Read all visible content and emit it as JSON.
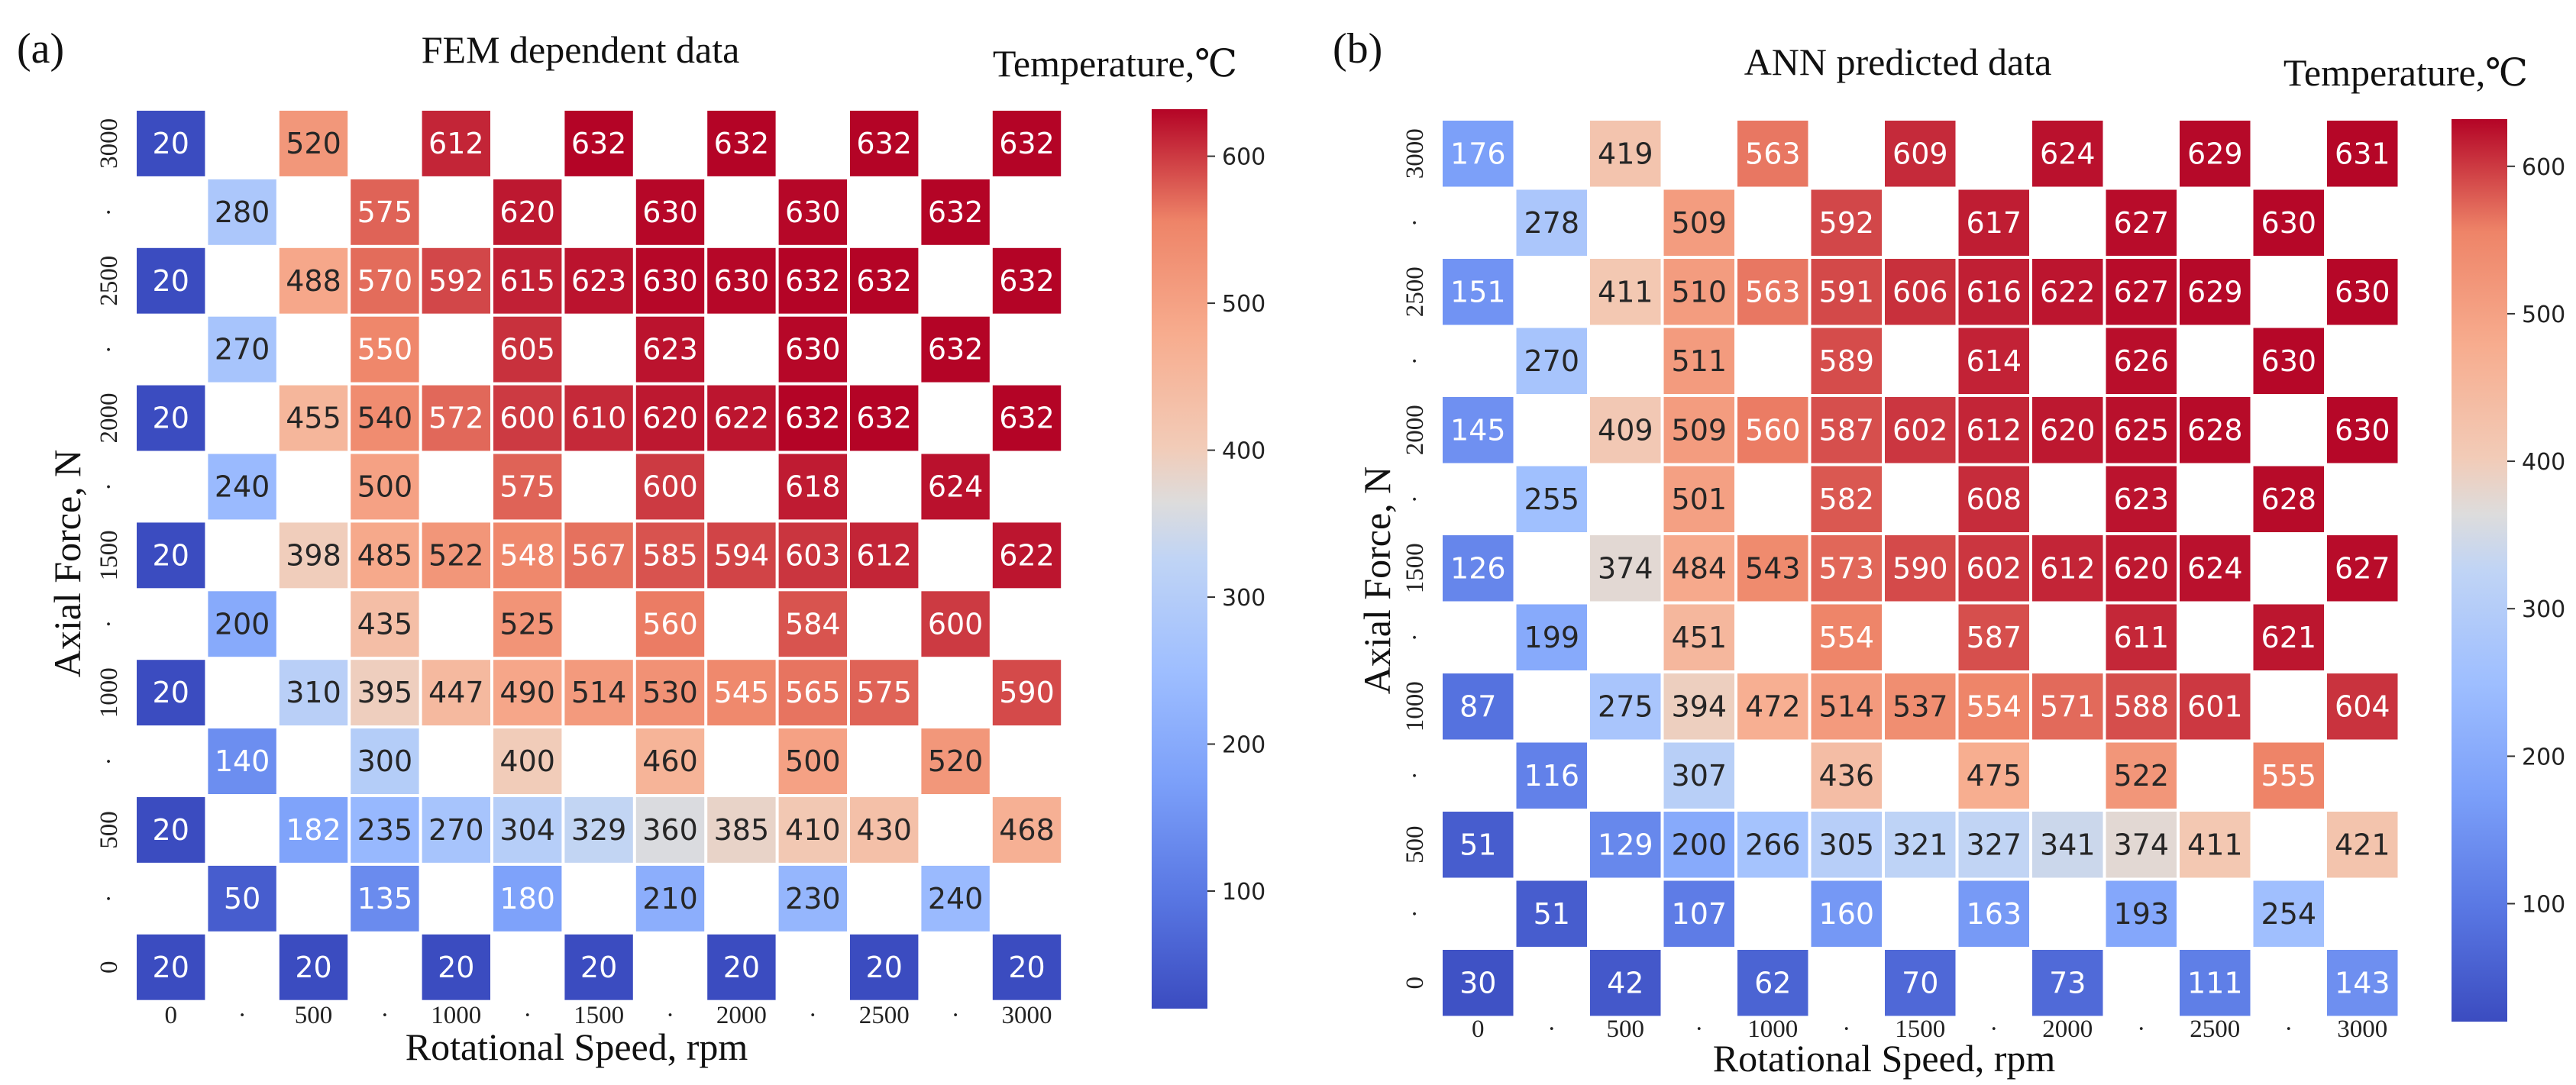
{
  "chart_data": [
    {
      "type": "heatmap",
      "panel_label": "(a)",
      "title": "FEM dependent data",
      "colorbar_title": "Temperature,℃",
      "xlabel": "Rotational Speed, rpm",
      "ylabel": "Axial Force, N",
      "x_values": [
        0,
        250,
        500,
        750,
        1000,
        1250,
        1500,
        1750,
        2000,
        2250,
        2500,
        2750,
        3000
      ],
      "y_values": [
        3000,
        2750,
        2500,
        2250,
        2000,
        1750,
        1500,
        1250,
        1000,
        750,
        500,
        250,
        0
      ],
      "x_ticklabels": [
        "0",
        "·",
        "500",
        "·",
        "1000",
        "·",
        "1500",
        "·",
        "2000",
        "·",
        "2500",
        "·",
        "3000"
      ],
      "y_ticklabels": [
        "3000",
        "·",
        "2500",
        "·",
        "2000",
        "·",
        "1500",
        "·",
        "1000",
        "·",
        "500",
        "·",
        "0"
      ],
      "colorbar_range": [
        20,
        632
      ],
      "colorbar_ticks": [
        100,
        200,
        300,
        400,
        500,
        600
      ],
      "grid": [
        [
          20,
          null,
          520,
          null,
          612,
          null,
          632,
          null,
          632,
          null,
          632,
          null,
          632
        ],
        [
          null,
          280,
          null,
          575,
          null,
          620,
          null,
          630,
          null,
          630,
          null,
          632,
          null
        ],
        [
          20,
          null,
          488,
          570,
          592,
          615,
          623,
          630,
          630,
          632,
          632,
          null,
          632
        ],
        [
          null,
          270,
          null,
          550,
          null,
          605,
          null,
          623,
          null,
          630,
          null,
          632,
          null
        ],
        [
          20,
          null,
          455,
          540,
          572,
          600,
          610,
          620,
          622,
          632,
          632,
          null,
          632
        ],
        [
          null,
          240,
          null,
          500,
          null,
          575,
          null,
          600,
          null,
          618,
          null,
          624,
          null
        ],
        [
          20,
          null,
          398,
          485,
          522,
          548,
          567,
          585,
          594,
          603,
          612,
          null,
          622
        ],
        [
          null,
          200,
          null,
          435,
          null,
          525,
          null,
          560,
          null,
          584,
          null,
          600,
          null
        ],
        [
          20,
          null,
          310,
          395,
          447,
          490,
          514,
          530,
          545,
          565,
          575,
          null,
          590
        ],
        [
          null,
          140,
          null,
          300,
          null,
          400,
          null,
          460,
          null,
          500,
          null,
          520,
          null
        ],
        [
          20,
          null,
          182,
          235,
          270,
          304,
          329,
          360,
          385,
          410,
          430,
          null,
          468
        ],
        [
          null,
          50,
          null,
          135,
          null,
          180,
          null,
          210,
          null,
          230,
          null,
          240,
          null
        ],
        [
          20,
          null,
          20,
          null,
          20,
          null,
          20,
          null,
          20,
          null,
          20,
          null,
          20
        ]
      ]
    },
    {
      "type": "heatmap",
      "panel_label": "(b)",
      "title": "ANN predicted data",
      "colorbar_title": "Temperature,℃",
      "xlabel": "Rotational Speed, rpm",
      "ylabel": "Axial Force, N",
      "x_values": [
        0,
        250,
        500,
        750,
        1000,
        1250,
        1500,
        1750,
        2000,
        2250,
        2500,
        2750,
        3000
      ],
      "y_values": [
        3000,
        2750,
        2500,
        2250,
        2000,
        1750,
        1500,
        1250,
        1000,
        750,
        500,
        250,
        0
      ],
      "x_ticklabels": [
        "0",
        "·",
        "500",
        "·",
        "1000",
        "·",
        "1500",
        "·",
        "2000",
        "·",
        "2500",
        "·",
        "3000"
      ],
      "y_ticklabels": [
        "3000",
        "·",
        "2500",
        "·",
        "2000",
        "·",
        "1500",
        "·",
        "1000",
        "·",
        "500",
        "·",
        "0"
      ],
      "colorbar_range": [
        20,
        632
      ],
      "colorbar_ticks": [
        100,
        200,
        300,
        400,
        500,
        600
      ],
      "grid": [
        [
          176,
          null,
          419,
          null,
          563,
          null,
          609,
          null,
          624,
          null,
          629,
          null,
          631
        ],
        [
          null,
          278,
          null,
          509,
          null,
          592,
          null,
          617,
          null,
          627,
          null,
          630,
          null
        ],
        [
          151,
          null,
          411,
          510,
          563,
          591,
          606,
          616,
          622,
          627,
          629,
          null,
          630
        ],
        [
          null,
          270,
          null,
          511,
          null,
          589,
          null,
          614,
          null,
          626,
          null,
          630,
          null
        ],
        [
          145,
          null,
          409,
          509,
          560,
          587,
          602,
          612,
          620,
          625,
          628,
          null,
          630
        ],
        [
          null,
          255,
          null,
          501,
          null,
          582,
          null,
          608,
          null,
          623,
          null,
          628,
          null
        ],
        [
          126,
          null,
          374,
          484,
          543,
          573,
          590,
          602,
          612,
          620,
          624,
          null,
          627
        ],
        [
          null,
          199,
          null,
          451,
          null,
          554,
          null,
          587,
          null,
          611,
          null,
          621,
          null
        ],
        [
          87,
          null,
          275,
          394,
          472,
          514,
          537,
          554,
          571,
          588,
          601,
          null,
          604
        ],
        [
          null,
          116,
          null,
          307,
          null,
          436,
          null,
          475,
          null,
          522,
          null,
          555,
          null
        ],
        [
          51,
          null,
          129,
          200,
          266,
          305,
          321,
          327,
          341,
          374,
          411,
          null,
          421
        ],
        [
          null,
          51,
          null,
          107,
          null,
          160,
          null,
          163,
          null,
          193,
          null,
          254,
          null
        ],
        [
          30,
          null,
          42,
          null,
          62,
          null,
          70,
          null,
          73,
          null,
          111,
          null,
          143
        ]
      ]
    }
  ]
}
